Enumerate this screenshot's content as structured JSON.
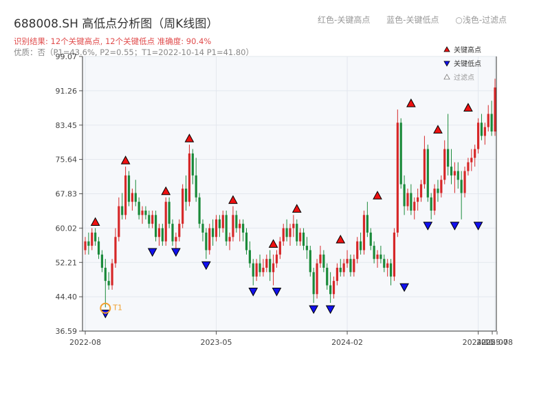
{
  "page": {
    "title": "688008.SH 高低点分析图（周K线图）",
    "summary": "识别结果: 12个关键高点, 12个关键低点  准确度: 90.4%",
    "quality": "优质：否（P1=43.6%, P2=0.55；T1=2022-10-14 P1=41.80）",
    "top_legend": {
      "high": "红色-关键高点",
      "low": "蓝色-关键低点",
      "filtered": "浅色-过滤点"
    }
  },
  "chart_data": {
    "type": "candlestick",
    "title": "688008.SH 高低点分析图（周K线图）",
    "y_ticks": [
      36.59,
      44.4,
      52.21,
      60.02,
      67.83,
      75.64,
      83.45,
      91.26,
      99.07
    ],
    "ylim": [
      36.59,
      99.07
    ],
    "x_ticks": [
      "2022-08",
      "2023-05",
      "2024-02",
      "2024-11",
      "2025-07",
      "2025-08"
    ],
    "grid": true,
    "legend": {
      "position": "top-right",
      "items": [
        "关键高点",
        "关键低点",
        "过滤点"
      ]
    },
    "colors": {
      "up": "#d62728",
      "down": "#1a8a3a",
      "high_marker": "#ee1111",
      "low_marker": "#1111ee",
      "t1_marker": "#f0a030",
      "plot_bg": "#f6f8fb"
    },
    "series_range": {
      "start": "2022-08-05",
      "end": "2025-08-01"
    },
    "candles": [
      [
        55,
        58,
        54,
        57
      ],
      [
        57,
        59,
        54,
        56
      ],
      [
        56,
        60,
        55,
        59
      ],
      [
        59,
        60,
        56,
        57
      ],
      [
        57,
        58,
        53,
        54
      ],
      [
        54,
        55,
        50,
        51
      ],
      [
        51,
        53,
        42,
        48
      ],
      [
        48,
        50,
        46,
        47
      ],
      [
        47,
        53,
        46,
        52
      ],
      [
        52,
        60,
        51,
        58
      ],
      [
        58,
        67,
        57,
        65
      ],
      [
        65,
        68,
        62,
        63
      ],
      [
        63,
        74,
        62,
        72
      ],
      [
        72,
        73,
        65,
        66
      ],
      [
        66,
        69,
        64,
        68
      ],
      [
        68,
        71,
        65,
        66
      ],
      [
        66,
        67,
        62,
        63
      ],
      [
        63,
        65,
        61,
        64
      ],
      [
        64,
        65,
        62,
        63
      ],
      [
        63,
        64,
        60,
        61
      ],
      [
        61,
        64,
        60,
        63
      ],
      [
        63,
        64,
        57,
        58
      ],
      [
        58,
        61,
        56,
        60
      ],
      [
        60,
        61,
        56,
        57
      ],
      [
        57,
        67,
        56,
        66
      ],
      [
        66,
        67,
        60,
        61
      ],
      [
        61,
        62,
        56,
        57
      ],
      [
        57,
        59,
        55,
        58
      ],
      [
        58,
        62,
        57,
        61
      ],
      [
        61,
        70,
        60,
        69
      ],
      [
        69,
        72,
        64,
        66
      ],
      [
        66,
        79,
        65,
        77
      ],
      [
        77,
        78,
        70,
        72
      ],
      [
        72,
        76,
        66,
        67
      ],
      [
        67,
        68,
        60,
        61
      ],
      [
        61,
        62,
        57,
        59
      ],
      [
        59,
        60,
        53,
        55
      ],
      [
        55,
        61,
        54,
        60
      ],
      [
        60,
        62,
        56,
        58
      ],
      [
        58,
        63,
        57,
        62
      ],
      [
        62,
        63,
        58,
        60
      ],
      [
        60,
        64,
        59,
        63
      ],
      [
        63,
        64,
        56,
        57
      ],
      [
        57,
        59,
        55,
        58
      ],
      [
        58,
        65,
        57,
        63
      ],
      [
        63,
        64,
        59,
        60
      ],
      [
        60,
        62,
        57,
        61
      ],
      [
        61,
        62,
        57,
        59
      ],
      [
        59,
        60,
        54,
        55
      ],
      [
        55,
        57,
        51,
        52
      ],
      [
        52,
        53,
        47,
        49
      ],
      [
        49,
        53,
        48,
        52
      ],
      [
        52,
        54,
        49,
        50
      ],
      [
        50,
        53,
        49,
        51
      ],
      [
        51,
        54,
        50,
        53
      ],
      [
        53,
        55,
        48,
        50
      ],
      [
        50,
        54,
        47,
        52
      ],
      [
        52,
        55,
        51,
        54
      ],
      [
        54,
        58,
        53,
        57
      ],
      [
        57,
        61,
        56,
        60
      ],
      [
        60,
        62,
        57,
        58
      ],
      [
        58,
        61,
        56,
        60
      ],
      [
        60,
        63,
        58,
        61
      ],
      [
        61,
        62,
        56,
        57
      ],
      [
        57,
        60,
        56,
        59
      ],
      [
        59,
        60,
        55,
        56
      ],
      [
        56,
        58,
        53,
        55
      ],
      [
        55,
        56,
        49,
        50
      ],
      [
        50,
        51,
        43,
        45
      ],
      [
        45,
        53,
        44,
        52
      ],
      [
        52,
        56,
        51,
        54
      ],
      [
        54,
        55,
        50,
        51
      ],
      [
        51,
        52,
        46,
        47
      ],
      [
        47,
        50,
        43,
        45
      ],
      [
        45,
        49,
        44,
        48
      ],
      [
        48,
        52,
        47,
        51
      ],
      [
        51,
        53,
        49,
        50
      ],
      [
        50,
        53,
        49,
        52
      ],
      [
        52,
        55,
        51,
        53
      ],
      [
        53,
        54,
        49,
        50
      ],
      [
        50,
        54,
        49,
        53
      ],
      [
        53,
        58,
        52,
        57
      ],
      [
        57,
        59,
        54,
        55
      ],
      [
        55,
        64,
        54,
        63
      ],
      [
        63,
        66,
        58,
        59
      ],
      [
        59,
        60,
        55,
        56
      ],
      [
        56,
        57,
        52,
        53
      ],
      [
        53,
        55,
        51,
        54
      ],
      [
        54,
        56,
        52,
        53
      ],
      [
        53,
        54,
        50,
        51
      ],
      [
        51,
        53,
        49,
        52
      ],
      [
        52,
        53,
        47,
        49
      ],
      [
        49,
        60,
        48,
        59
      ],
      [
        59,
        87,
        58,
        84
      ],
      [
        84,
        85,
        69,
        70
      ],
      [
        70,
        72,
        63,
        65
      ],
      [
        65,
        69,
        64,
        68
      ],
      [
        68,
        70,
        63,
        64
      ],
      [
        64,
        67,
        62,
        66
      ],
      [
        66,
        69,
        64,
        67
      ],
      [
        67,
        71,
        66,
        70
      ],
      [
        70,
        81,
        69,
        78
      ],
      [
        78,
        79,
        66,
        67
      ],
      [
        67,
        68,
        62,
        64
      ],
      [
        64,
        70,
        63,
        69
      ],
      [
        69,
        71,
        66,
        68
      ],
      [
        68,
        72,
        67,
        71
      ],
      [
        71,
        80,
        70,
        78
      ],
      [
        78,
        86,
        72,
        74
      ],
      [
        74,
        78,
        70,
        72
      ],
      [
        72,
        75,
        68,
        73
      ],
      [
        73,
        75,
        69,
        71
      ],
      [
        71,
        73,
        62,
        68
      ],
      [
        68,
        74,
        67,
        73
      ],
      [
        73,
        76,
        72,
        75
      ],
      [
        75,
        78,
        73,
        76
      ],
      [
        76,
        79,
        74,
        78
      ],
      [
        78,
        85,
        77,
        84
      ],
      [
        84,
        86,
        80,
        81
      ],
      [
        81,
        84,
        79,
        83
      ],
      [
        83,
        88,
        82,
        86
      ],
      [
        86,
        89,
        81,
        82
      ],
      [
        82,
        94,
        81,
        92
      ]
    ],
    "key_highs": [
      {
        "idx": 3,
        "price": 60
      },
      {
        "idx": 12,
        "price": 74
      },
      {
        "idx": 24,
        "price": 67
      },
      {
        "idx": 31,
        "price": 79
      },
      {
        "idx": 44,
        "price": 65
      },
      {
        "idx": 56,
        "price": 55
      },
      {
        "idx": 63,
        "price": 63
      },
      {
        "idx": 76,
        "price": 56
      },
      {
        "idx": 87,
        "price": 66
      },
      {
        "idx": 97,
        "price": 87
      },
      {
        "idx": 105,
        "price": 81
      },
      {
        "idx": 114,
        "price": 86
      }
    ],
    "key_lows": [
      {
        "idx": 6,
        "price": 42
      },
      {
        "idx": 20,
        "price": 56
      },
      {
        "idx": 27,
        "price": 56
      },
      {
        "idx": 36,
        "price": 53
      },
      {
        "idx": 50,
        "price": 47
      },
      {
        "idx": 57,
        "price": 47
      },
      {
        "idx": 68,
        "price": 43
      },
      {
        "idx": 73,
        "price": 43
      },
      {
        "idx": 95,
        "price": 48
      },
      {
        "idx": 102,
        "price": 62
      },
      {
        "idx": 110,
        "price": 62
      },
      {
        "idx": 117,
        "price": 62
      }
    ],
    "t1": {
      "idx": 6,
      "price": 41.8,
      "label": "T1"
    }
  }
}
